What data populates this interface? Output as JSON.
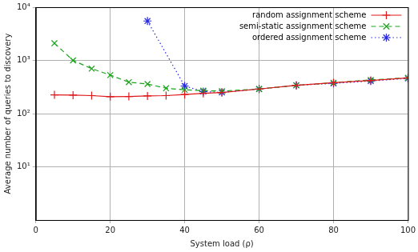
{
  "chart_data": {
    "type": "line",
    "x_label": "System load (ρ)",
    "y_label": "Average number of queries to discovery",
    "xlim": [
      0,
      100
    ],
    "xticks": [
      0,
      20,
      40,
      60,
      80,
      100
    ],
    "ylim": [
      1,
      10000
    ],
    "yticks": [
      {
        "value": 10,
        "label": "10¹"
      },
      {
        "value": 100,
        "label": "10²"
      },
      {
        "value": 1000,
        "label": "10³"
      },
      {
        "value": 10000,
        "label": "10⁴"
      }
    ],
    "log": "y",
    "grid": true,
    "legend": "top-right",
    "series": [
      {
        "name": "random assignment scheme",
        "color": "#e0181b",
        "marker": "plus",
        "line_style": "solid",
        "x": [
          5,
          10,
          15,
          20,
          25,
          30,
          35,
          40,
          45,
          50,
          60,
          70,
          80,
          90,
          100
        ],
        "values": [
          225,
          222,
          218,
          208,
          210,
          215,
          218,
          228,
          240,
          250,
          290,
          340,
          380,
          420,
          470
        ]
      },
      {
        "name": "semi-static assignment scheme",
        "color": "#1aa31a",
        "marker": "x",
        "line_style": "dashed",
        "x": [
          5,
          10,
          15,
          20,
          25,
          30,
          35,
          40,
          45,
          50,
          60,
          70,
          80,
          90,
          100
        ],
        "values": [
          2100,
          1000,
          700,
          530,
          390,
          360,
          300,
          280,
          270,
          265,
          290,
          340,
          380,
          430,
          470
        ]
      },
      {
        "name": "ordered assignment scheme",
        "color": "#2a2ae0",
        "marker": "star",
        "line_style": "dotted",
        "x": [
          30,
          40,
          45,
          50,
          60,
          70,
          80,
          90,
          100
        ],
        "values": [
          5500,
          330,
          260,
          250,
          290,
          340,
          370,
          410,
          460
        ]
      }
    ]
  }
}
